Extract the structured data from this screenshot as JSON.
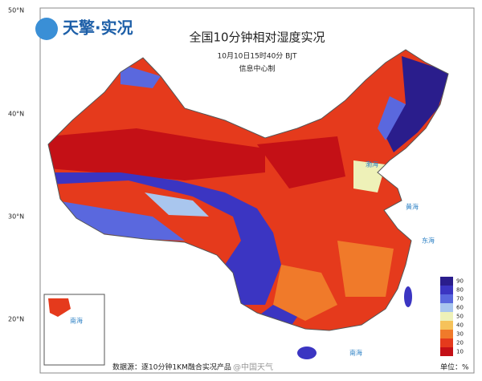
{
  "header": {
    "logo": "天擎·实况",
    "title": "全国10分钟相对湿度实况",
    "time": "10月10日15时40分 BJT",
    "producer": "信息中心制"
  },
  "latitude_labels": [
    "50°N",
    "40°N",
    "30°N",
    "20°N"
  ],
  "seas": [
    "渤海",
    "黄海",
    "东海",
    "南海"
  ],
  "inset": {
    "label": "南海"
  },
  "legend": {
    "unit": "单位：%",
    "levels": [
      {
        "label": "90",
        "color": "#2a1d8c"
      },
      {
        "label": "80",
        "color": "#3b35c2"
      },
      {
        "label": "70",
        "color": "#5a68de"
      },
      {
        "label": "60",
        "color": "#a9c6ee"
      },
      {
        "label": "50",
        "color": "#eef1b8"
      },
      {
        "label": "40",
        "color": "#f6c25a"
      },
      {
        "label": "30",
        "color": "#f07a2a"
      },
      {
        "label": "20",
        "color": "#e53a1c"
      },
      {
        "label": "10",
        "color": "#c41016"
      }
    ]
  },
  "footer": {
    "source": "数据源：逐10分钟1KM融合实况产品",
    "watermark": "@中国天气"
  }
}
